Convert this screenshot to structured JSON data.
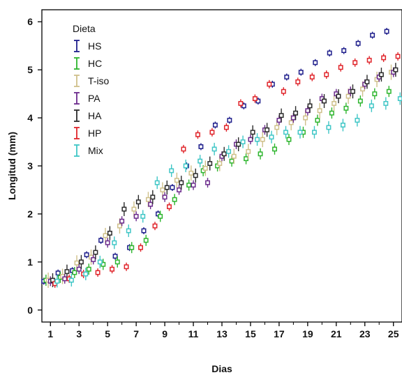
{
  "chart_data": {
    "type": "scatter",
    "title": "",
    "xlabel": "Dias",
    "ylabel": "Longitud (mm)",
    "xlim": [
      0.4,
      25.6
    ],
    "ylim": [
      -0.25,
      6.25
    ],
    "xticks": [
      1,
      3,
      5,
      7,
      9,
      11,
      13,
      15,
      17,
      19,
      21,
      23,
      25
    ],
    "yticks": [
      0,
      1,
      2,
      3,
      4,
      5,
      6
    ],
    "legend_title": "Dieta",
    "legend_position": "top-left",
    "marker": "open-square-with-error-bar",
    "series": [
      {
        "name": "HS",
        "color": "#1f1f8c",
        "x": [
          1,
          2,
          3,
          4,
          5,
          6,
          7,
          8,
          9,
          10,
          11,
          12,
          13,
          14,
          15,
          16,
          17,
          18,
          19,
          20,
          21,
          22,
          23,
          24,
          25
        ],
        "y": [
          0.6,
          0.77,
          0.82,
          1.15,
          1.45,
          1.12,
          1.3,
          1.65,
          2.0,
          2.55,
          3.0,
          3.4,
          3.85,
          3.95,
          4.25,
          4.35,
          4.7,
          4.85,
          4.95,
          5.15,
          5.35,
          5.4,
          5.55,
          5.72,
          5.8
        ]
      },
      {
        "name": "HC",
        "color": "#2db52d",
        "x": [
          1,
          2,
          3,
          4,
          5,
          6,
          7,
          8,
          9,
          10,
          11,
          12,
          13,
          14,
          15,
          16,
          17,
          18,
          19,
          20,
          21,
          22,
          23,
          24,
          25
        ],
        "y": [
          0.62,
          0.68,
          0.78,
          0.85,
          0.95,
          1.0,
          1.3,
          1.45,
          1.95,
          2.3,
          2.6,
          2.9,
          3.0,
          3.1,
          3.15,
          3.25,
          3.35,
          3.55,
          3.7,
          3.95,
          4.1,
          4.2,
          4.35,
          4.5,
          4.55
        ]
      },
      {
        "name": "T-iso",
        "color": "#cfc08a",
        "x": [
          1,
          2,
          3,
          4,
          5,
          6,
          7,
          8,
          9,
          10,
          11,
          12,
          13,
          14,
          15,
          16,
          17,
          18,
          19,
          20,
          21,
          22,
          23,
          24,
          25
        ],
        "y": [
          0.62,
          0.7,
          0.98,
          1.1,
          1.55,
          1.75,
          2.1,
          2.3,
          2.5,
          2.7,
          2.85,
          2.95,
          3.05,
          3.2,
          3.3,
          3.55,
          3.8,
          3.9,
          4.0,
          4.15,
          4.3,
          4.45,
          4.6,
          4.8,
          4.95
        ]
      },
      {
        "name": "PA",
        "color": "#6b2a8c",
        "x": [
          1,
          2,
          3,
          4,
          5,
          6,
          7,
          8,
          9,
          10,
          11,
          12,
          13,
          14,
          15,
          16,
          17,
          18,
          19,
          20,
          21,
          22,
          23,
          24,
          25
        ],
        "y": [
          0.6,
          0.65,
          0.85,
          1.05,
          1.4,
          1.85,
          1.95,
          2.2,
          2.35,
          2.5,
          2.6,
          2.65,
          3.2,
          3.45,
          3.55,
          3.75,
          3.95,
          4.0,
          4.15,
          4.4,
          4.5,
          4.55,
          4.7,
          4.85,
          4.95
        ]
      },
      {
        "name": "HA",
        "color": "#2b2b2b",
        "x": [
          1,
          2,
          3,
          4,
          5,
          6,
          7,
          8,
          9,
          10,
          11,
          12,
          13,
          14,
          15,
          16,
          17,
          18,
          19,
          20,
          21,
          22,
          23,
          24,
          25
        ],
        "y": [
          0.62,
          0.8,
          1.0,
          1.2,
          1.6,
          2.1,
          2.25,
          2.35,
          2.55,
          2.65,
          2.8,
          3.05,
          3.25,
          3.45,
          3.7,
          3.75,
          4.05,
          4.1,
          4.25,
          4.35,
          4.45,
          4.55,
          4.75,
          4.9,
          5.0
        ]
      },
      {
        "name": "HP",
        "color": "#e0242a",
        "x": [
          1,
          2,
          3,
          4,
          5,
          6,
          7,
          8,
          9,
          10,
          11,
          12,
          13,
          14,
          15,
          16,
          17,
          18,
          19,
          20,
          21,
          22,
          23,
          24,
          25
        ],
        "y": [
          0.55,
          0.65,
          0.75,
          0.78,
          0.85,
          0.9,
          1.3,
          1.75,
          2.15,
          3.35,
          3.65,
          3.7,
          3.8,
          4.3,
          4.4,
          4.7,
          4.55,
          4.75,
          4.85,
          4.9,
          5.05,
          5.15,
          5.2,
          5.25,
          5.28
        ]
      },
      {
        "name": "Mix",
        "color": "#3fc6c6",
        "x": [
          1,
          2,
          3,
          4,
          5,
          6,
          7,
          8,
          9,
          10,
          11,
          12,
          13,
          14,
          15,
          16,
          17,
          18,
          19,
          20,
          21,
          22,
          23,
          24,
          25
        ],
        "y": [
          0.6,
          0.62,
          0.75,
          1.0,
          1.4,
          1.65,
          1.95,
          2.65,
          2.9,
          3.0,
          3.1,
          3.35,
          3.3,
          3.5,
          3.55,
          3.6,
          3.7,
          3.7,
          3.7,
          3.8,
          3.85,
          3.95,
          4.25,
          4.3,
          4.4
        ]
      }
    ]
  }
}
